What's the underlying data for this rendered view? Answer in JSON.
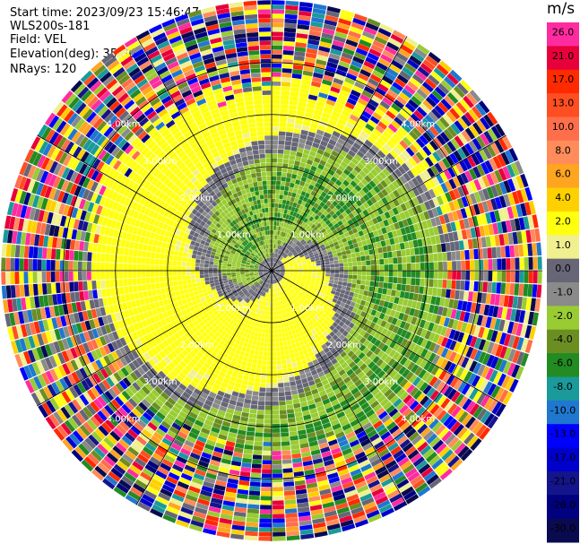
{
  "info": {
    "start_time": "Start time: 2023/09/23 15:46:47",
    "instrument": "WLS200s-181",
    "field": "Field: VEL",
    "elevation": "Elevation(deg): 35.30",
    "nrays": "NRays: 120"
  },
  "chart_data": {
    "type": "ppi",
    "field": "VEL",
    "range_rings": [
      {
        "range_km": 1.0,
        "label": "1.00km"
      },
      {
        "range_km": 2.0,
        "label": "2.00km"
      },
      {
        "range_km": 3.0,
        "label": "3.00km"
      },
      {
        "range_km": 4.0,
        "label": "4.00km"
      }
    ],
    "max_range_km": 5.2,
    "colorbar": {
      "unit": "m/s",
      "ticks": [
        "26.0",
        "21.0",
        "17.0",
        "13.0",
        "10.0",
        "8.0",
        "6.0",
        "4.0",
        "2.0",
        "1.0",
        "0.0",
        "-1.0",
        "-2.0",
        "-4.0",
        "-6.0",
        "-8.0",
        "-10.0",
        "-13.0",
        "-17.0",
        "-21.0",
        "-26.0",
        "-30.0"
      ],
      "colors": [
        "#ff2ba0",
        "#e8003a",
        "#ff2a00",
        "#ff4e21",
        "#ff6e4a",
        "#ff8c5a",
        "#ffa520",
        "#ffd000",
        "#ffff10",
        "#f0f090",
        "#666677",
        "#8a8a8a",
        "#99cc33",
        "#6b8e23",
        "#228b22",
        "#1a9a9a",
        "#1f77d0",
        "#0000ff",
        "#0000cd",
        "#14148c",
        "#000080",
        "#0a0a50"
      ]
    }
  }
}
